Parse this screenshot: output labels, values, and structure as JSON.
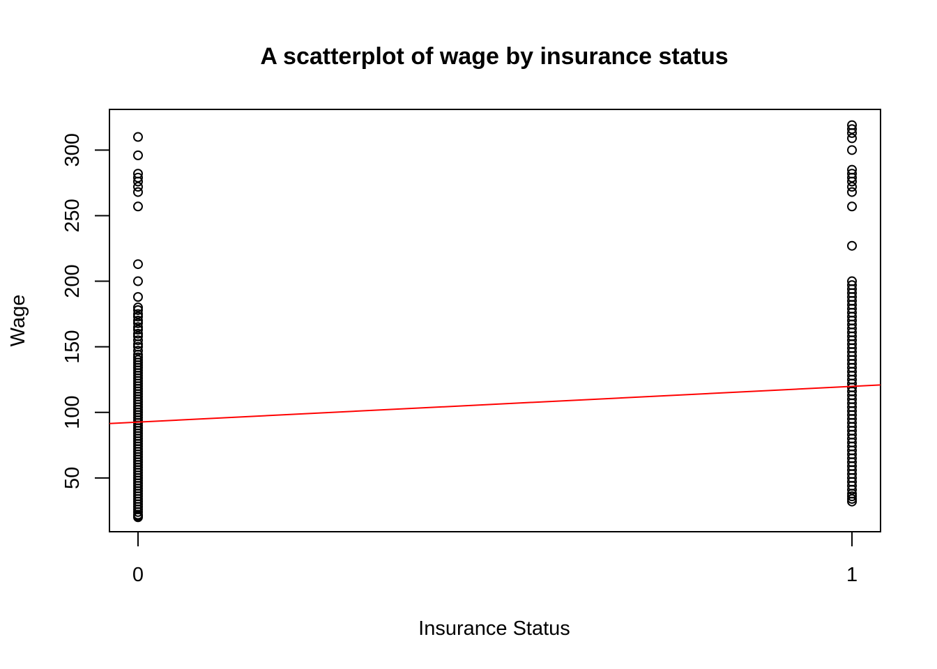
{
  "chart_data": {
    "type": "scatter",
    "title": "A scatterplot of wage by insurance status",
    "xlabel": "Insurance Status",
    "ylabel": "Wage",
    "x_ticks": [
      0,
      1
    ],
    "y_ticks": [
      50,
      100,
      150,
      200,
      250,
      300
    ],
    "xlim": [
      -0.04,
      1.04
    ],
    "ylim": [
      9,
      331
    ],
    "grid": false,
    "series": [
      {
        "x": 0,
        "values": [
          20,
          21,
          22,
          24,
          26,
          28,
          30,
          32,
          34,
          36,
          38,
          40,
          42,
          44,
          46,
          48,
          50,
          52,
          54,
          56,
          58,
          60,
          62,
          64,
          66,
          68,
          70,
          72,
          74,
          76,
          78,
          80,
          82,
          84,
          86,
          88,
          90,
          92,
          94,
          96,
          98,
          100,
          102,
          104,
          106,
          108,
          110,
          112,
          114,
          116,
          118,
          120,
          122,
          124,
          126,
          128,
          130,
          132,
          134,
          136,
          138,
          140,
          142,
          144,
          147,
          150,
          152,
          155,
          158,
          160,
          163,
          165,
          168,
          170,
          173,
          175,
          178,
          180,
          188,
          200,
          213,
          257,
          268,
          272,
          276,
          279,
          282,
          296,
          310
        ]
      },
      {
        "x": 1,
        "values": [
          32,
          34,
          36,
          38,
          41,
          44,
          47,
          50,
          53,
          56,
          59,
          62,
          65,
          68,
          71,
          74,
          77,
          80,
          83,
          86,
          89,
          92,
          95,
          98,
          101,
          104,
          107,
          110,
          113,
          116,
          119,
          122,
          125,
          128,
          131,
          134,
          137,
          140,
          143,
          146,
          149,
          152,
          155,
          158,
          161,
          164,
          167,
          170,
          173,
          176,
          179,
          182,
          185,
          188,
          191,
          194,
          197,
          200,
          227,
          257,
          268,
          272,
          276,
          279,
          282,
          285,
          300,
          309,
          313,
          316,
          319
        ]
      }
    ],
    "fit_line": {
      "x": [
        -0.04,
        1.04
      ],
      "y": [
        91.5,
        120.9
      ],
      "color": "#ff0000"
    }
  }
}
